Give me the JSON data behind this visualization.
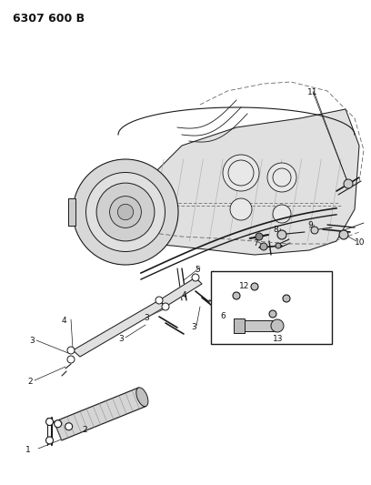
{
  "title_code": "6307 600 B",
  "bg_color": "#ffffff",
  "line_color": "#1a1a1a",
  "text_color": "#111111",
  "fig_width": 4.08,
  "fig_height": 5.33,
  "dpi": 100
}
